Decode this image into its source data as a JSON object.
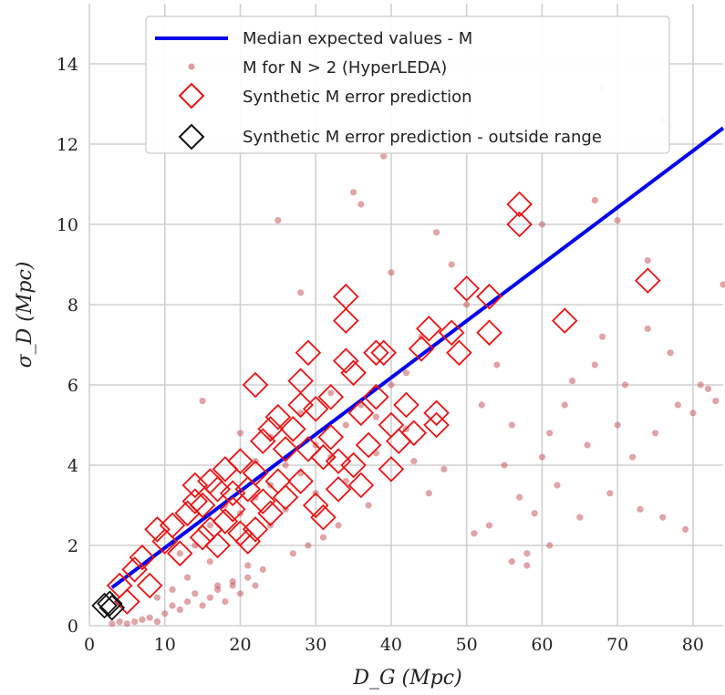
{
  "chart_data": {
    "type": "scatter",
    "xlabel": "D_G (Mpc)",
    "ylabel": "σ_D (Mpc)",
    "xlim": [
      0,
      84
    ],
    "ylim": [
      0,
      15.5
    ],
    "xticks": [
      0,
      10,
      20,
      30,
      40,
      50,
      60,
      70,
      80
    ],
    "yticks": [
      0,
      2,
      4,
      6,
      8,
      10,
      12,
      14
    ],
    "grid": true,
    "legend_position": "top-center",
    "series": [
      {
        "name": "Median expected values - M",
        "kind": "line",
        "color": "#0000ee",
        "x": [
          3,
          84
        ],
        "y": [
          0.95,
          12.4
        ]
      },
      {
        "name": "M for N > 2 (HyperLEDA)",
        "kind": "dots",
        "color": "#c9595f",
        "points": [
          [
            3,
            0.05
          ],
          [
            4,
            0.1
          ],
          [
            5,
            0.05
          ],
          [
            6,
            0.1
          ],
          [
            7,
            0.15
          ],
          [
            8,
            0.2
          ],
          [
            9,
            0.1
          ],
          [
            10,
            0.3
          ],
          [
            11,
            0.5
          ],
          [
            12,
            0.4
          ],
          [
            13,
            0.6
          ],
          [
            14,
            0.8
          ],
          [
            15,
            0.5
          ],
          [
            16,
            0.7
          ],
          [
            17,
            0.9
          ],
          [
            18,
            0.6
          ],
          [
            19,
            1.0
          ],
          [
            20,
            0.8
          ],
          [
            21,
            1.2
          ],
          [
            22,
            1.0
          ],
          [
            14,
            2.0
          ],
          [
            16,
            2.5
          ],
          [
            18,
            3.0
          ],
          [
            20,
            2.8
          ],
          [
            22,
            3.2
          ],
          [
            24,
            3.5
          ],
          [
            26,
            4.0
          ],
          [
            28,
            3.8
          ],
          [
            30,
            4.5
          ],
          [
            32,
            4.2
          ],
          [
            34,
            5.0
          ],
          [
            36,
            5.5
          ],
          [
            38,
            5.2
          ],
          [
            40,
            6.0
          ],
          [
            15,
            5.6
          ],
          [
            20,
            4.8
          ],
          [
            25,
            10.1
          ],
          [
            28,
            8.3
          ],
          [
            35,
            10.8
          ],
          [
            36,
            10.5
          ],
          [
            40,
            8.8
          ],
          [
            42,
            6.3
          ],
          [
            44,
            7.2
          ],
          [
            46,
            9.8
          ],
          [
            48,
            9.0
          ],
          [
            50,
            8.0
          ],
          [
            52,
            5.5
          ],
          [
            54,
            6.5
          ],
          [
            55,
            4.0
          ],
          [
            56,
            5.0
          ],
          [
            57,
            3.2
          ],
          [
            58,
            1.8
          ],
          [
            59,
            2.8
          ],
          [
            60,
            4.2
          ],
          [
            61,
            4.8
          ],
          [
            62,
            3.5
          ],
          [
            63,
            5.5
          ],
          [
            64,
            6.1
          ],
          [
            65,
            2.7
          ],
          [
            66,
            4.5
          ],
          [
            67,
            6.5
          ],
          [
            68,
            7.2
          ],
          [
            69,
            3.3
          ],
          [
            70,
            5.0
          ],
          [
            71,
            6.0
          ],
          [
            72,
            4.2
          ],
          [
            73,
            2.9
          ],
          [
            74,
            7.4
          ],
          [
            75,
            4.8
          ],
          [
            76,
            2.7
          ],
          [
            77,
            6.8
          ],
          [
            78,
            5.5
          ],
          [
            79,
            2.4
          ],
          [
            80,
            5.3
          ],
          [
            81,
            6.0
          ],
          [
            82,
            5.9
          ],
          [
            83,
            5.6
          ],
          [
            84,
            8.5
          ],
          [
            74,
            9.1
          ],
          [
            67,
            10.6
          ],
          [
            70,
            10.1
          ],
          [
            68,
            13.4
          ],
          [
            76,
            12.6
          ],
          [
            60,
            10.0
          ],
          [
            39,
            11.7
          ],
          [
            53,
            2.5
          ],
          [
            51,
            2.3
          ],
          [
            58,
            1.5
          ],
          [
            56,
            1.6
          ],
          [
            61,
            2.0
          ],
          [
            47,
            3.9
          ],
          [
            45,
            3.3
          ],
          [
            43,
            4.1
          ],
          [
            37,
            3.0
          ],
          [
            33,
            2.5
          ],
          [
            31,
            2.2
          ],
          [
            29,
            2.0
          ],
          [
            27,
            1.8
          ],
          [
            23,
            1.4
          ],
          [
            21,
            1.5
          ],
          [
            19,
            1.1
          ],
          [
            17,
            1.0
          ],
          [
            13,
            1.2
          ],
          [
            11,
            0.9
          ],
          [
            9,
            0.7
          ],
          [
            12,
            1.8
          ],
          [
            16,
            1.6
          ],
          [
            24,
            2.5
          ],
          [
            26,
            2.9
          ],
          [
            30,
            3.3
          ],
          [
            34,
            3.6
          ],
          [
            38,
            4.3
          ],
          [
            42,
            4.9
          ],
          [
            32,
            5.8
          ],
          [
            28,
            5.3
          ],
          [
            24,
            4.7
          ],
          [
            22,
            4.1
          ]
        ]
      },
      {
        "name": "Synthetic M error prediction",
        "kind": "diamond",
        "color": "#ee1111",
        "points": [
          [
            4,
            1.0
          ],
          [
            5,
            0.6
          ],
          [
            6,
            1.4
          ],
          [
            7,
            1.7
          ],
          [
            8,
            1.0
          ],
          [
            9,
            2.4
          ],
          [
            10,
            2.1
          ],
          [
            11,
            2.5
          ],
          [
            12,
            1.8
          ],
          [
            13,
            2.8
          ],
          [
            14,
            3.1
          ],
          [
            14,
            3.5
          ],
          [
            15,
            2.2
          ],
          [
            15,
            3.0
          ],
          [
            16,
            2.4
          ],
          [
            16,
            3.6
          ],
          [
            17,
            2.0
          ],
          [
            17,
            3.4
          ],
          [
            18,
            2.6
          ],
          [
            18,
            3.9
          ],
          [
            19,
            2.9
          ],
          [
            19,
            3.3
          ],
          [
            20,
            2.3
          ],
          [
            20,
            4.1
          ],
          [
            21,
            3.4
          ],
          [
            21,
            2.1
          ],
          [
            22,
            2.4
          ],
          [
            22,
            3.8
          ],
          [
            22,
            6.0
          ],
          [
            23,
            3.1
          ],
          [
            23,
            4.6
          ],
          [
            24,
            2.8
          ],
          [
            24,
            4.9
          ],
          [
            25,
            3.6
          ],
          [
            25,
            5.2
          ],
          [
            26,
            4.4
          ],
          [
            26,
            3.2
          ],
          [
            27,
            4.9
          ],
          [
            28,
            5.5
          ],
          [
            28,
            3.6
          ],
          [
            28,
            6.1
          ],
          [
            29,
            4.4
          ],
          [
            29,
            6.8
          ],
          [
            30,
            3.0
          ],
          [
            30,
            5.4
          ],
          [
            31,
            4.2
          ],
          [
            31,
            2.7
          ],
          [
            32,
            4.7
          ],
          [
            32,
            5.7
          ],
          [
            33,
            4.1
          ],
          [
            33,
            3.4
          ],
          [
            34,
            6.6
          ],
          [
            34,
            7.6
          ],
          [
            34,
            8.2
          ],
          [
            35,
            4.0
          ],
          [
            35,
            6.3
          ],
          [
            36,
            5.3
          ],
          [
            36,
            3.5
          ],
          [
            37,
            4.5
          ],
          [
            38,
            6.8
          ],
          [
            38,
            5.7
          ],
          [
            39,
            6.8
          ],
          [
            40,
            5.0
          ],
          [
            40,
            3.9
          ],
          [
            41,
            4.6
          ],
          [
            42,
            5.5
          ],
          [
            43,
            4.8
          ],
          [
            44,
            6.9
          ],
          [
            45,
            7.4
          ],
          [
            46,
            5.0
          ],
          [
            46,
            5.3
          ],
          [
            48,
            7.3
          ],
          [
            49,
            6.8
          ],
          [
            50,
            8.4
          ],
          [
            53,
            7.3
          ],
          [
            53,
            8.2
          ],
          [
            57,
            10.5
          ],
          [
            57,
            10.0
          ],
          [
            63,
            7.6
          ],
          [
            74,
            8.6
          ]
        ]
      },
      {
        "name": "Synthetic M error prediction - outside range",
        "kind": "diamond",
        "color": "#111111",
        "points": [
          [
            2,
            0.5
          ],
          [
            2.7,
            0.55
          ],
          [
            3,
            0.45
          ]
        ]
      }
    ]
  }
}
